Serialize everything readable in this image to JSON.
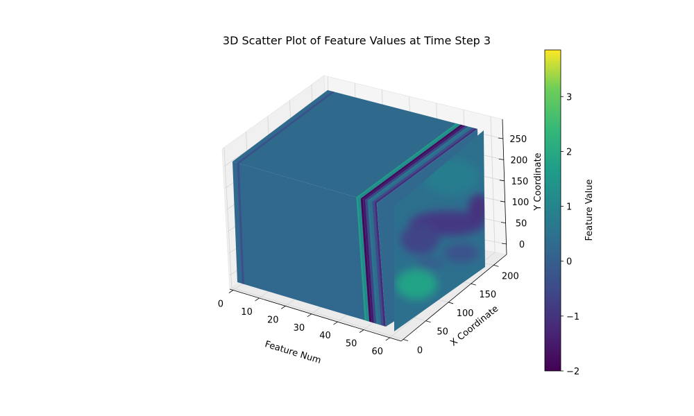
{
  "chart_data": {
    "type": "scatter",
    "projection": "3d",
    "title": "3D Scatter Plot of Feature Values at Time Step 3",
    "xlabel": "Feature Num",
    "ylabel": "X Coordinate",
    "zlabel": "Y Coordinate",
    "x_ticks": [
      "0",
      "10",
      "20",
      "30",
      "40",
      "50",
      "60"
    ],
    "y_ticks": [
      "0",
      "50",
      "100",
      "150",
      "200"
    ],
    "z_ticks": [
      "0",
      "50",
      "100",
      "150",
      "200",
      "250"
    ],
    "xlim": [
      0,
      63
    ],
    "ylim": [
      0,
      224
    ],
    "zlim": [
      0,
      280
    ],
    "grid": true,
    "colormap": "viridis",
    "colorbar": {
      "label": "Feature Value",
      "ticks": [
        "−2",
        "−1",
        "0",
        "1",
        "2",
        "3"
      ],
      "range": [
        -2.0,
        3.85
      ]
    },
    "dominant_value": 0.0,
    "feature_slices": [
      {
        "feature": 2,
        "value": -0.4
      },
      {
        "feature": 54,
        "value": 1.6
      },
      {
        "feature": 55,
        "value": 1.2
      },
      {
        "feature": 56,
        "value": -1.9
      },
      {
        "feature": 57,
        "value": -1.6
      },
      {
        "feature": 58,
        "value": -0.6
      },
      {
        "feature": 59,
        "value": 0.6
      },
      {
        "feature": 60,
        "value": 0.3
      },
      {
        "feature": 61,
        "value": -0.5
      },
      {
        "feature": 62,
        "value": -1.2
      }
    ],
    "end_face_feature": 63
  }
}
